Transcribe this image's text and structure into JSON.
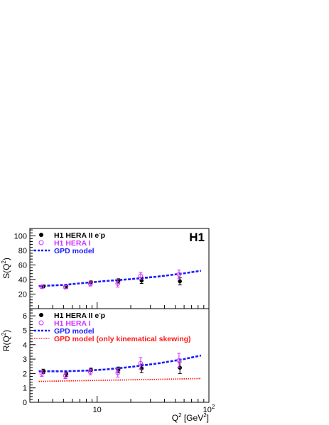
{
  "chart_data": [
    {
      "type": "scatter",
      "id": "top",
      "ylabel_main": "S(Q",
      "ylabel_sup": "2",
      "ylabel_tail": ")",
      "yticks": [
        20,
        40,
        60,
        80,
        100
      ],
      "ylim": [
        0,
        110
      ],
      "xlim": [
        2.5,
        100
      ],
      "xscale": "log",
      "badge": "H1",
      "legend": [
        {
          "kind": "filled",
          "text": "H1 HERA II e",
          "sup": "-",
          "tail": "p",
          "color": "#000000"
        },
        {
          "kind": "open",
          "text": "H1 HERA I",
          "sup": "",
          "tail": "",
          "color": "#cc33ff"
        },
        {
          "kind": "dashed",
          "text": "GPD model",
          "sup": "",
          "tail": "",
          "color": "#1a1aff"
        }
      ],
      "series": [
        {
          "name": "H1 HERA II e-p",
          "marker": "filled",
          "color": "#000000",
          "points": [
            {
              "x": 3.3,
              "y": 30.5,
              "err": 2.0
            },
            {
              "x": 5.3,
              "y": 30.0,
              "err": 2.0
            },
            {
              "x": 8.8,
              "y": 36.0,
              "err": 2.0
            },
            {
              "x": 15.5,
              "y": 38.0,
              "err": 3.0
            },
            {
              "x": 25.0,
              "y": 38.5,
              "err": 4.0
            },
            {
              "x": 55.0,
              "y": 37.5,
              "err": 5.0
            }
          ]
        },
        {
          "name": "H1 HERA I",
          "marker": "open",
          "color": "#cc33ff",
          "points": [
            {
              "x": 3.2,
              "y": 30.0,
              "err": 2.0
            },
            {
              "x": 5.2,
              "y": 29.5,
              "err": 2.0
            },
            {
              "x": 8.7,
              "y": 34.0,
              "err": 3.0
            },
            {
              "x": 15.3,
              "y": 34.5,
              "err": 5.0
            },
            {
              "x": 24.5,
              "y": 45.0,
              "err": 5.0
            },
            {
              "x": 54.0,
              "y": 47.0,
              "err": 6.0
            }
          ]
        },
        {
          "name": "GPD model",
          "line": "dashed",
          "color": "#1a1aff",
          "curve": [
            [
              3.0,
              31.0
            ],
            [
              5.0,
              32.5
            ],
            [
              8.0,
              35.5
            ],
            [
              12.0,
              38.0
            ],
            [
              20.0,
              40.5
            ],
            [
              35.0,
              44.0
            ],
            [
              60.0,
              48.5
            ],
            [
              85.0,
              52.0
            ]
          ]
        }
      ]
    },
    {
      "type": "scatter",
      "id": "bottom",
      "ylabel_main": "R(Q",
      "ylabel_sup": "2",
      "ylabel_tail": ")",
      "yticks": [
        0,
        1,
        2,
        3,
        4,
        5,
        6
      ],
      "ylim": [
        0,
        6.5
      ],
      "xlim": [
        2.5,
        100
      ],
      "xscale": "log",
      "xticks": [
        {
          "value": 10,
          "label": "10",
          "sup": ""
        },
        {
          "value": 100,
          "label": "10",
          "sup": "2"
        }
      ],
      "xlabel_main": "Q",
      "xlabel_sup": "2",
      "xlabel_unit": " [GeV",
      "xlabel_unit_sup": "2",
      "xlabel_tail": "]",
      "legend": [
        {
          "kind": "filled",
          "text": "H1 HERA II e",
          "sup": "-",
          "tail": "p",
          "color": "#000000"
        },
        {
          "kind": "open",
          "text": "H1 HERA I",
          "sup": "",
          "tail": "",
          "color": "#cc33ff"
        },
        {
          "kind": "dashed",
          "text": "GPD model",
          "sup": "",
          "tail": "",
          "color": "#1a1aff"
        },
        {
          "kind": "dotted",
          "text": "GPD model (only kinematical skewing)",
          "sup": "",
          "tail": "",
          "color": "#ff1a1a"
        }
      ],
      "series": [
        {
          "name": "H1 HERA II e-p",
          "marker": "filled",
          "color": "#000000",
          "points": [
            {
              "x": 3.3,
              "y": 2.15,
              "err": 0.15
            },
            {
              "x": 5.3,
              "y": 1.95,
              "err": 0.15
            },
            {
              "x": 8.8,
              "y": 2.25,
              "err": 0.12
            },
            {
              "x": 15.5,
              "y": 2.25,
              "err": 0.2
            },
            {
              "x": 25.0,
              "y": 2.35,
              "err": 0.3
            },
            {
              "x": 55.0,
              "y": 2.4,
              "err": 0.4
            }
          ]
        },
        {
          "name": "H1 HERA I",
          "marker": "open",
          "color": "#cc33ff",
          "points": [
            {
              "x": 3.2,
              "y": 2.0,
              "err": 0.2
            },
            {
              "x": 5.2,
              "y": 1.85,
              "err": 0.2
            },
            {
              "x": 8.7,
              "y": 2.1,
              "err": 0.2
            },
            {
              "x": 15.3,
              "y": 2.05,
              "err": 0.3
            },
            {
              "x": 24.5,
              "y": 2.7,
              "err": 0.4
            },
            {
              "x": 54.0,
              "y": 2.9,
              "err": 0.5
            }
          ]
        },
        {
          "name": "GPD model",
          "line": "dashed",
          "color": "#1a1aff",
          "curve": [
            [
              3.0,
              2.15
            ],
            [
              5.0,
              2.15
            ],
            [
              8.0,
              2.2
            ],
            [
              12.0,
              2.28
            ],
            [
              20.0,
              2.45
            ],
            [
              35.0,
              2.7
            ],
            [
              60.0,
              3.0
            ],
            [
              85.0,
              3.25
            ]
          ]
        },
        {
          "name": "GPD model (only kinematical skewing)",
          "line": "dotted",
          "color": "#ff1a1a",
          "curve": [
            [
              3.0,
              1.45
            ],
            [
              10.0,
              1.52
            ],
            [
              30.0,
              1.58
            ],
            [
              85.0,
              1.65
            ]
          ]
        }
      ]
    }
  ]
}
